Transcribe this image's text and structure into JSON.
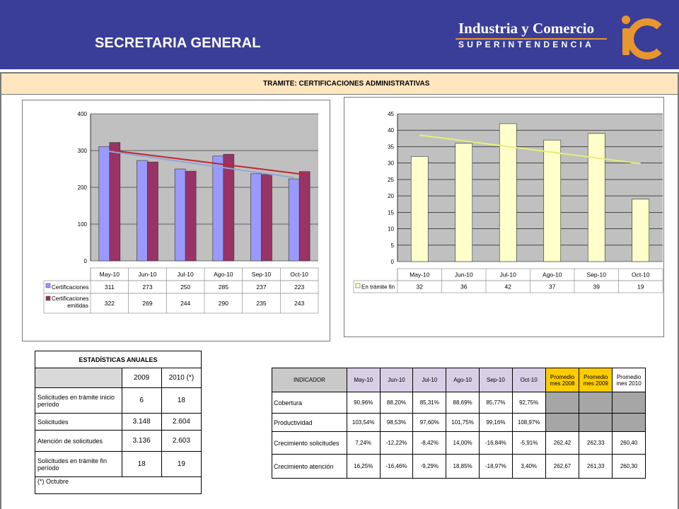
{
  "header": {
    "title": "SECRETARIA GENERAL",
    "logo_line1": "Industria y Comercio",
    "logo_line2": "SUPERINTENDENCIA",
    "colors": {
      "bar": "#3a3e98",
      "logo_accent": "#e8962e"
    }
  },
  "tramite": {
    "label": "TRAMITE:  CERTIFICACIONES ADMINISTRATIVAS"
  },
  "chart_data": [
    {
      "type": "bar",
      "categories": [
        "May-10",
        "Jun-10",
        "Jul-10",
        "Ago-10",
        "Sep-10",
        "Oct-10"
      ],
      "series": [
        {
          "name": "Certificaciones",
          "values": [
            311,
            273,
            250,
            285,
            237,
            223
          ],
          "color": "#9999ff"
        },
        {
          "name": "Certificaciones emitidas",
          "values": [
            322,
            269,
            244,
            290,
            235,
            243
          ],
          "color": "#993366"
        }
      ],
      "trendlines": [
        {
          "series": "Certificaciones",
          "color": "#8fa8d8"
        },
        {
          "series": "Certificaciones emitidas",
          "color": "#c0262d"
        }
      ],
      "ylim": [
        0,
        400
      ],
      "yticks": [
        0,
        100,
        200,
        300,
        400
      ],
      "grid": true,
      "legend": "data-table"
    },
    {
      "type": "bar",
      "categories": [
        "May-10",
        "Jun-10",
        "Jul-10",
        "Ago-10",
        "Sep-10",
        "Oct-10"
      ],
      "series": [
        {
          "name": "En trámite fin",
          "values": [
            32,
            36,
            42,
            37,
            39,
            19
          ],
          "color": "#ffffcc"
        }
      ],
      "trendlines": [
        {
          "series": "En trámite fin",
          "color": "#e6ee7a"
        }
      ],
      "ylim": [
        0,
        45
      ],
      "yticks": [
        0,
        5,
        10,
        15,
        20,
        25,
        30,
        35,
        40,
        45
      ],
      "grid": true,
      "legend": "data-table"
    }
  ],
  "stats": {
    "title": "ESTADÍSTICAS ANUALES",
    "years": [
      "2009",
      "2010 (*)"
    ],
    "rows": [
      {
        "label": "Solicitudes en trámite inicio período",
        "v2009": "6",
        "v2010": "18"
      },
      {
        "label": "Solicitudes",
        "v2009": "3.148",
        "v2010": "2.604"
      },
      {
        "label": "Atención de solicitudes",
        "v2009": "3.136",
        "v2010": "2.603"
      },
      {
        "label": "Solicitudes en trámite fin período",
        "v2009": "18",
        "v2010": "19"
      }
    ],
    "footnote": "(*) Octubre"
  },
  "indicators": {
    "header": "INDICADOR",
    "months": [
      "May-10",
      "Jun-10",
      "Jul-10",
      "Ago-10",
      "Sep-10",
      "Oct-10"
    ],
    "prom2008": "Promedio mes 2008",
    "prom2009": "Promedio mes 2009",
    "prom2010": "Promedio mes 2010",
    "rows": [
      {
        "label": "Cobertura",
        "values": [
          "90,96%",
          "88,20%",
          "85,31%",
          "88,69%",
          "85,77%",
          "92,75%"
        ],
        "proms": [
          "",
          "",
          ""
        ]
      },
      {
        "label": "Productividad",
        "values": [
          "103,54%",
          "98,53%",
          "97,60%",
          "101,75%",
          "99,16%",
          "108,97%"
        ],
        "proms": [
          "",
          "",
          ""
        ]
      },
      {
        "label": "Crecimiento solicitudes",
        "values": [
          "7,24%",
          "-12,22%",
          "-8,42%",
          "14,00%",
          "-16,84%",
          "-5,91%"
        ],
        "proms": [
          "262,42",
          "262,33",
          "260,40"
        ]
      },
      {
        "label": "Crecimiento atención",
        "values": [
          "16,25%",
          "-16,46%",
          "-9,29%",
          "18,85%",
          "-18,97%",
          "3,40%"
        ],
        "proms": [
          "262,67",
          "261,33",
          "260,30"
        ]
      }
    ]
  }
}
